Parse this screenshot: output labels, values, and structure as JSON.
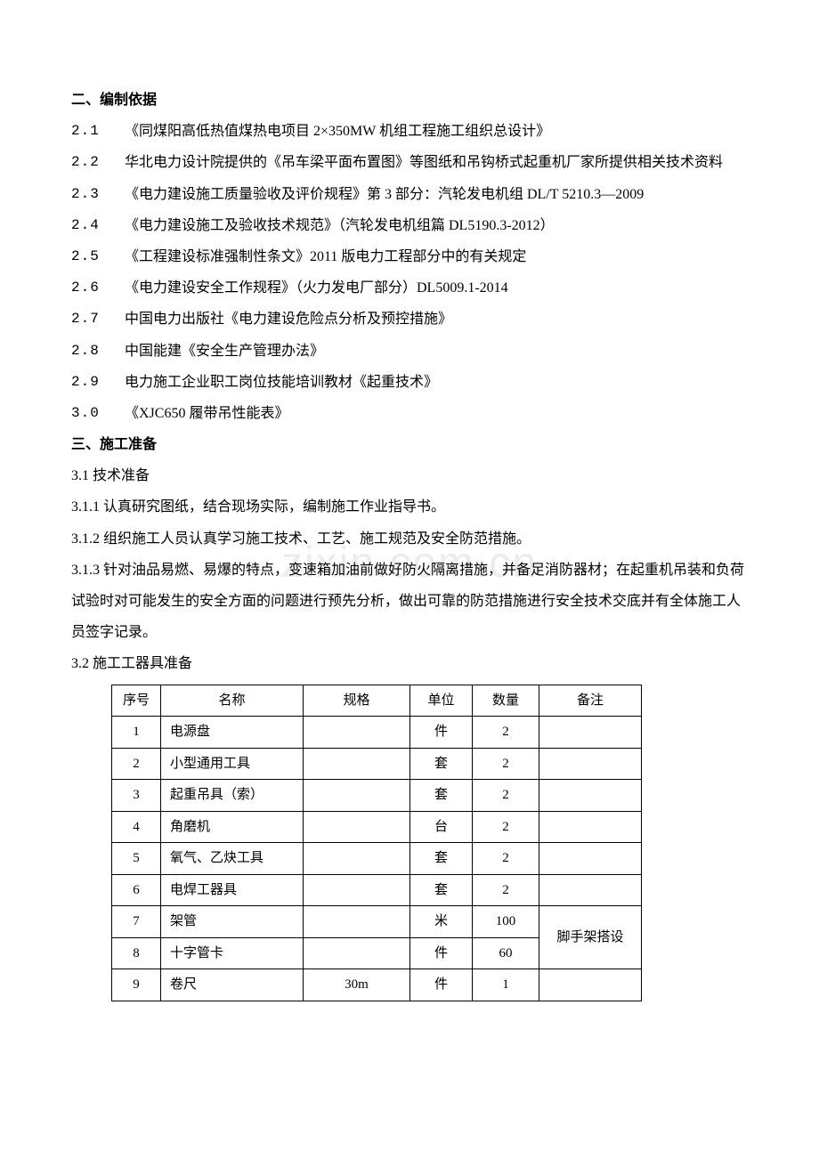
{
  "section2": {
    "heading": "二、编制依据",
    "items": [
      {
        "num": "2.1",
        "text": "《同煤阳高低热值煤热电项目 2×350MW 机组工程施工组织总设计》"
      },
      {
        "num": "2.2",
        "text": " 华北电力设计院提供的《吊车梁平面布置图》等图纸和吊钩桥式起重机厂家所提供相关技术资料"
      },
      {
        "num": "2.3",
        "text": "《电力建设施工质量验收及评价规程》第 3 部分：汽轮发电机组 DL/T 5210.3—2009"
      },
      {
        "num": "2.4",
        "text": "《电力建设施工及验收技术规范》（汽轮发电机组篇 DL5190.3-2012）"
      },
      {
        "num": "2.5",
        "text": "《工程建设标准强制性条文》2011 版电力工程部分中的有关规定"
      },
      {
        "num": "2.6",
        "text": "《电力建设安全工作规程》（火力发电厂部分）DL5009.1-2014"
      },
      {
        "num": "2.7",
        "text": " 中国电力出版社《电力建设危险点分析及预控措施》"
      },
      {
        "num": "2.8",
        "text": " 中国能建《安全生产管理办法》"
      },
      {
        "num": "2.9",
        "text": " 电力施工企业职工岗位技能培训教材《起重技术》"
      },
      {
        "num": "3.0",
        "text": " 《XJC650 履带吊性能表》"
      }
    ]
  },
  "section3": {
    "heading": "三、施工准备",
    "sub1": {
      "title": "3.1 技术准备",
      "items": [
        "3.1.1 认真研究图纸，结合现场实际，编制施工作业指导书。",
        "3.1.2 组织施工人员认真学习施工技术、工艺、施工规范及安全防范措施。",
        "3.1.3 针对油品易燃、易爆的特点，变速箱加油前做好防火隔离措施，并备足消防器材；在起重机吊装和负荷试验时对可能发生的安全方面的问题进行预先分析，做出可靠的防范措施进行安全技术交底并有全体施工人员签字记录。"
      ]
    },
    "sub2": {
      "title": "3.2 施工工器具准备",
      "table": {
        "headers": [
          "序号",
          "名称",
          "规格",
          "单位",
          "数量",
          "备注"
        ],
        "rows": [
          {
            "seq": "1",
            "name": "电源盘",
            "spec": "",
            "unit": "件",
            "qty": "2",
            "note": ""
          },
          {
            "seq": "2",
            "name": "小型通用工具",
            "spec": "",
            "unit": "套",
            "qty": "2",
            "note": ""
          },
          {
            "seq": "3",
            "name": "起重吊具（索）",
            "spec": "",
            "unit": "套",
            "qty": "2",
            "note": ""
          },
          {
            "seq": "4",
            "name": "角磨机",
            "spec": "",
            "unit": "台",
            "qty": "2",
            "note": ""
          },
          {
            "seq": "5",
            "name": "氧气、乙炔工具",
            "spec": "",
            "unit": "套",
            "qty": "2",
            "note": ""
          },
          {
            "seq": "6",
            "name": "电焊工器具",
            "spec": "",
            "unit": "套",
            "qty": "2",
            "note": ""
          },
          {
            "seq": "7",
            "name": "架管",
            "spec": "",
            "unit": "米",
            "qty": "100",
            "note": "脚手架搭设"
          },
          {
            "seq": "8",
            "name": "十字管卡",
            "spec": "",
            "unit": "件",
            "qty": "60",
            "note": ""
          },
          {
            "seq": "9",
            "name": "卷尺",
            "spec": "30m",
            "unit": "件",
            "qty": "1",
            "note": ""
          }
        ],
        "merged_note_rows": [
          6,
          7
        ]
      }
    }
  },
  "watermark": "zixin.com.cn"
}
